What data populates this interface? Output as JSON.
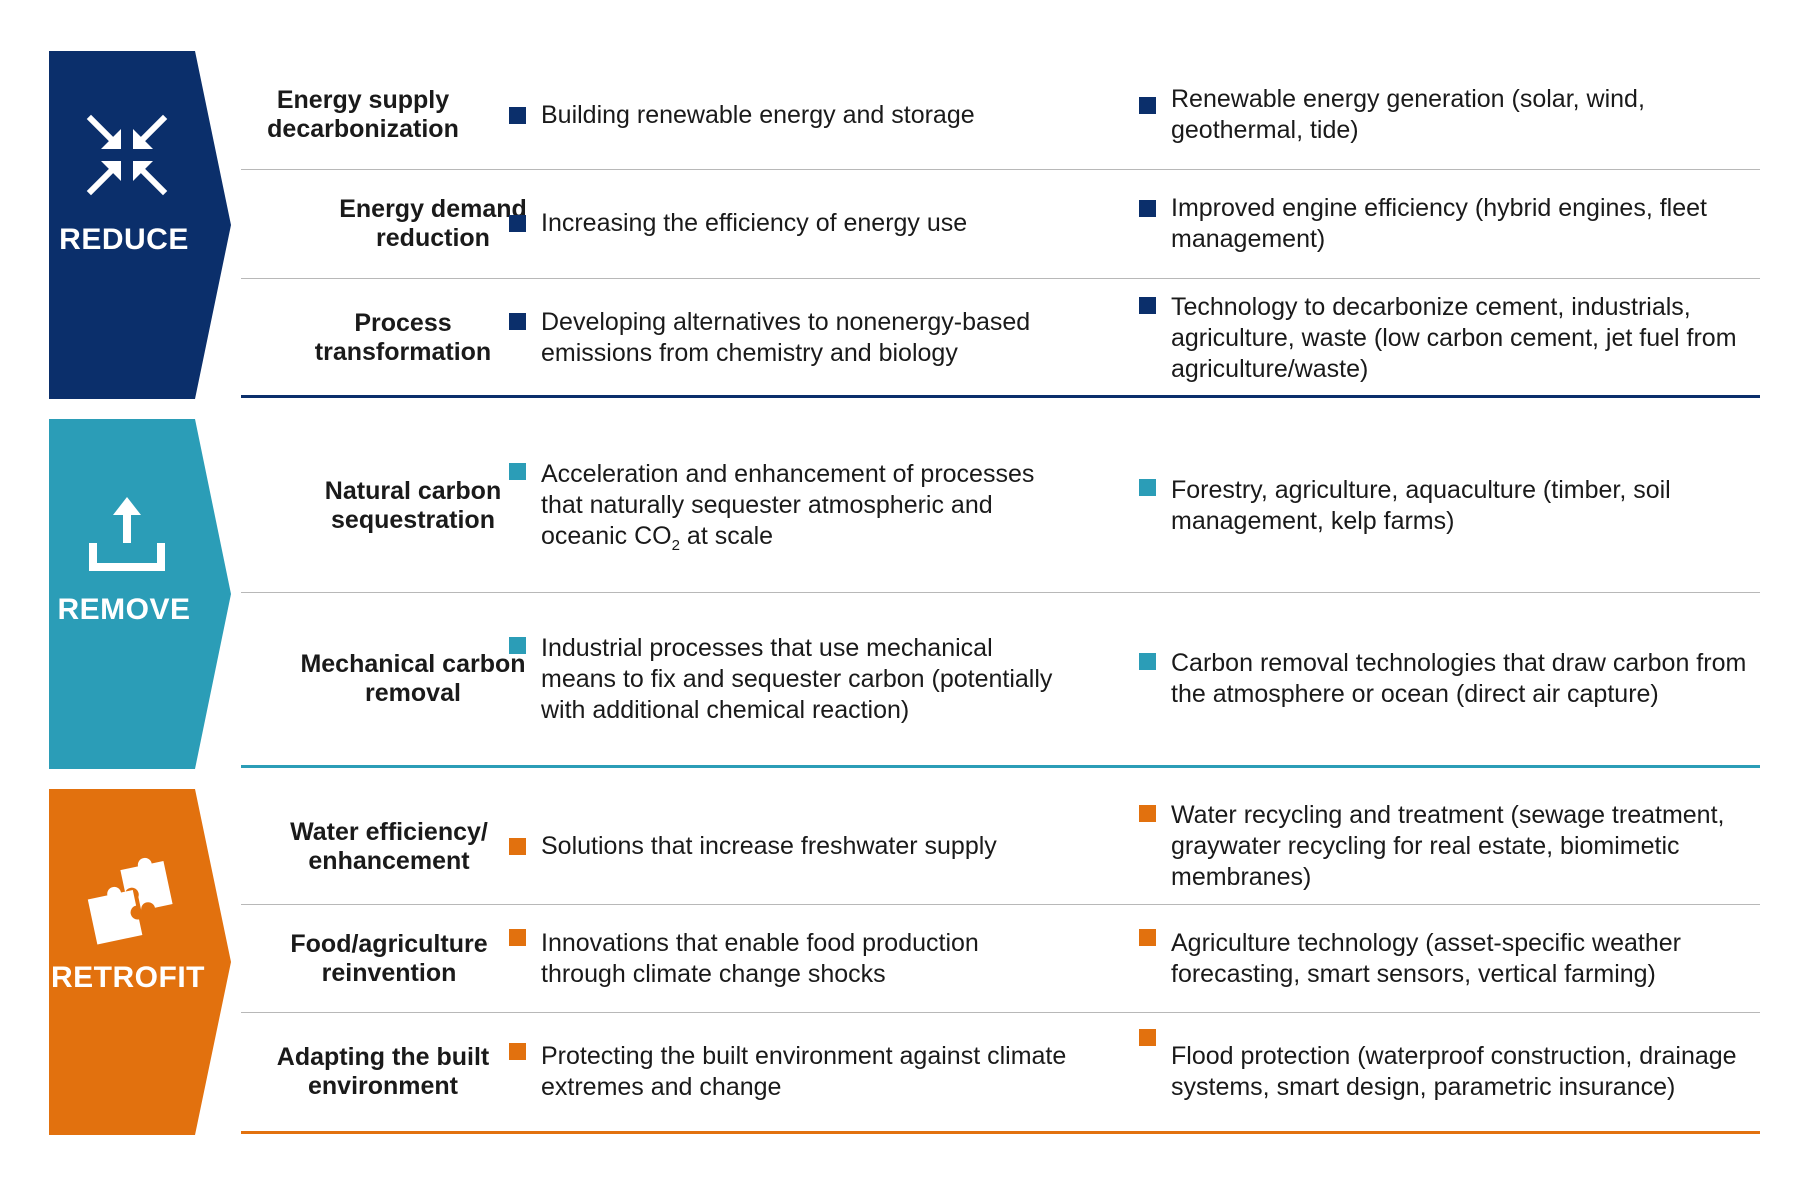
{
  "sections": [
    {
      "label": "REDUCE",
      "icon": "arrows-converge-icon",
      "color": "#0b2f6b",
      "rows": [
        {
          "title": "Energy supply decarbonization",
          "description": "Building renewable energy and storage",
          "examples": "Renewable energy generation (solar, wind, geothermal, tide)"
        },
        {
          "title": "Energy demand reduction",
          "description": "Increasing the efficiency of energy use",
          "examples": "Improved engine efficiency (hybrid engines, fleet management)"
        },
        {
          "title": "Process transformation",
          "description": "Developing alternatives to nonenergy-based emissions from chemistry and biology",
          "examples": "Technology to decarbonize cement, industrials, agriculture, waste (low carbon cement, jet fuel from agriculture/waste)"
        }
      ]
    },
    {
      "label": "REMOVE",
      "icon": "upload-arrow-icon",
      "color": "#2b9db7",
      "rows": [
        {
          "title": "Natural carbon sequestration",
          "description_pre": "Acceleration and enhancement of processes that naturally sequester atmospheric and oceanic CO",
          "description_sub": "2",
          "description_post": " at scale",
          "examples": "Forestry, agriculture, aquaculture (timber, soil management, kelp farms)"
        },
        {
          "title": "Mechanical carbon removal",
          "description": "Industrial processes that use mechanical means to fix and sequester carbon (potentially with additional chemical reaction)",
          "examples": "Carbon removal technologies that draw carbon from the atmosphere or ocean (direct air capture)"
        }
      ]
    },
    {
      "label": "RETROFIT",
      "icon": "puzzle-pieces-icon",
      "color": "#e2710e",
      "rows": [
        {
          "title": "Water efficiency/ enhancement",
          "description": "Solutions that increase freshwater supply",
          "examples": "Water recycling and treatment (sewage treatment, graywater recycling for real estate, biomimetic membranes)"
        },
        {
          "title": "Food/agriculture reinvention",
          "description": "Innovations that enable food production through climate change shocks",
          "examples": "Agriculture technology (asset-specific weather forecasting, smart sensors, vertical farming)"
        },
        {
          "title": "Adapting the built environment",
          "description": "Protecting the built environment against climate extremes and change",
          "examples": "Flood protection (waterproof construction, drainage systems, smart design, parametric insurance)"
        }
      ]
    }
  ]
}
